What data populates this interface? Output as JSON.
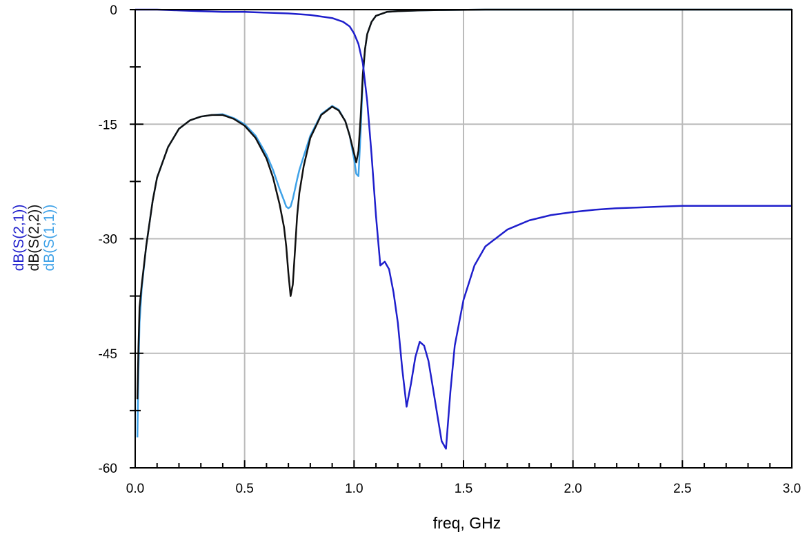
{
  "chart_data": {
    "type": "line",
    "xlabel": "freq, GHz",
    "ylabel": [
      "dB(S(2,1))",
      "dB(S(2,2))",
      "dB(S(1,1))"
    ],
    "xlim": [
      0.0,
      3.0
    ],
    "ylim": [
      -60,
      0
    ],
    "x_ticks": [
      0.0,
      0.5,
      1.0,
      1.5,
      2.0,
      2.5,
      3.0
    ],
    "x_tick_labels": [
      "0.0",
      "0.5",
      "1.0",
      "1.5",
      "2.0",
      "2.5",
      "3.0"
    ],
    "y_ticks": [
      0,
      -15,
      -30,
      -45,
      -60
    ],
    "y_tick_labels": [
      "0",
      "-15",
      "-30",
      "-45",
      "-60"
    ],
    "grid": true,
    "series": [
      {
        "name": "dB(S(2,1))",
        "color": "#1f1fcc",
        "x": [
          0.0,
          0.1,
          0.2,
          0.3,
          0.4,
          0.5,
          0.6,
          0.7,
          0.8,
          0.85,
          0.9,
          0.95,
          0.98,
          1.0,
          1.02,
          1.04,
          1.06,
          1.08,
          1.1,
          1.12,
          1.14,
          1.16,
          1.18,
          1.2,
          1.22,
          1.24,
          1.26,
          1.28,
          1.3,
          1.32,
          1.34,
          1.36,
          1.38,
          1.4,
          1.42,
          1.44,
          1.46,
          1.5,
          1.55,
          1.6,
          1.7,
          1.8,
          1.9,
          2.0,
          2.1,
          2.2,
          2.3,
          2.4,
          2.5,
          2.6,
          2.7,
          2.8,
          2.9,
          3.0
        ],
        "y": [
          0,
          0,
          -0.1,
          -0.2,
          -0.3,
          -0.3,
          -0.4,
          -0.5,
          -0.7,
          -0.9,
          -1.1,
          -1.6,
          -2.2,
          -3.1,
          -4.5,
          -7.0,
          -12.0,
          -19.0,
          -27.0,
          -33.5,
          -33.0,
          -34.0,
          -37.0,
          -41.0,
          -47.0,
          -52.0,
          -49.0,
          -45.5,
          -43.5,
          -44.0,
          -46.0,
          -49.5,
          -53.0,
          -56.5,
          -57.5,
          -50.0,
          -44.0,
          -38.0,
          -33.5,
          -31.0,
          -28.8,
          -27.6,
          -26.9,
          -26.5,
          -26.2,
          -26.0,
          -25.9,
          -25.8,
          -25.7,
          -25.7,
          -25.7,
          -25.7,
          -25.7,
          -25.7
        ]
      },
      {
        "name": "dB(S(2,2))",
        "color": "#111111",
        "x": [
          0.01,
          0.015,
          0.02,
          0.03,
          0.05,
          0.08,
          0.1,
          0.15,
          0.2,
          0.25,
          0.3,
          0.35,
          0.4,
          0.45,
          0.5,
          0.55,
          0.6,
          0.63,
          0.66,
          0.68,
          0.69,
          0.7,
          0.71,
          0.72,
          0.73,
          0.74,
          0.75,
          0.77,
          0.8,
          0.85,
          0.9,
          0.93,
          0.96,
          0.98,
          1.0,
          1.01,
          1.02,
          1.03,
          1.04,
          1.05,
          1.06,
          1.08,
          1.1,
          1.15,
          1.2,
          1.3,
          1.4,
          1.6,
          2.0,
          2.5,
          3.0
        ],
        "y": [
          -51.0,
          -44.0,
          -39.0,
          -36.0,
          -31.0,
          -25.0,
          -22.0,
          -18.0,
          -15.6,
          -14.5,
          -14.0,
          -13.8,
          -13.8,
          -14.3,
          -15.2,
          -16.8,
          -19.5,
          -22.0,
          -25.5,
          -28.5,
          -31.0,
          -34.5,
          -37.5,
          -36.0,
          -31.5,
          -27.0,
          -24.0,
          -20.5,
          -16.8,
          -13.8,
          -12.7,
          -13.2,
          -14.6,
          -16.5,
          -18.8,
          -20.0,
          -18.5,
          -14.0,
          -8.5,
          -5.2,
          -3.2,
          -1.6,
          -0.8,
          -0.3,
          -0.2,
          -0.1,
          -0.05,
          0,
          0,
          0,
          0
        ]
      },
      {
        "name": "dB(S(1,1))",
        "color": "#3fa2e8",
        "x": [
          0.01,
          0.015,
          0.02,
          0.03,
          0.05,
          0.08,
          0.1,
          0.15,
          0.2,
          0.25,
          0.3,
          0.35,
          0.4,
          0.45,
          0.5,
          0.55,
          0.6,
          0.63,
          0.66,
          0.68,
          0.69,
          0.7,
          0.71,
          0.72,
          0.73,
          0.74,
          0.75,
          0.77,
          0.8,
          0.85,
          0.9,
          0.93,
          0.96,
          0.98,
          1.0,
          1.01,
          1.02,
          1.03,
          1.04,
          1.05,
          1.06,
          1.08,
          1.1,
          1.15,
          1.2,
          1.3,
          1.4,
          1.6,
          2.0,
          2.5,
          3.0
        ],
        "y": [
          -56.0,
          -47.0,
          -41.0,
          -36.5,
          -31.0,
          -25.0,
          -22.0,
          -18.0,
          -15.6,
          -14.5,
          -14.0,
          -13.8,
          -13.7,
          -14.2,
          -15.0,
          -16.5,
          -19.0,
          -21.0,
          -23.5,
          -25.0,
          -25.8,
          -26.0,
          -25.8,
          -24.8,
          -23.5,
          -22.2,
          -21.0,
          -19.2,
          -16.5,
          -13.7,
          -12.6,
          -13.1,
          -14.6,
          -16.5,
          -19.5,
          -21.5,
          -21.8,
          -16.0,
          -9.0,
          -5.2,
          -3.2,
          -1.6,
          -0.8,
          -0.3,
          -0.2,
          -0.1,
          -0.05,
          0,
          0,
          0,
          0
        ]
      }
    ]
  }
}
